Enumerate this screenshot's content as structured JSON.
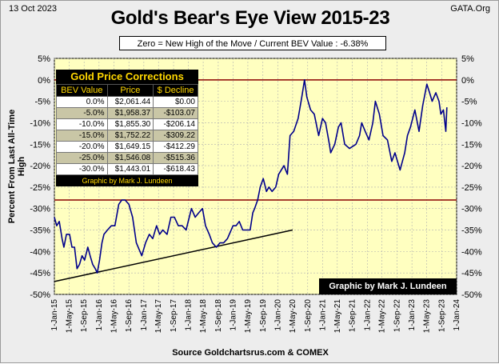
{
  "header": {
    "date": "13 Oct 2023",
    "site": "GATA.Org"
  },
  "subtitle": "Zero = New High of the Move / Current  BEV Value : -6.38%",
  "source": "Source Goldchartsrus.com & COMEX",
  "credit": "Graphic by Mark J. Lundeen",
  "table": {
    "title": "Gold Price Corrections",
    "headers": [
      "BEV Value",
      "Price",
      "$ Decline"
    ],
    "rows": [
      [
        "0.0%",
        "$2,061.44",
        "$0.00"
      ],
      [
        "-5.0%",
        "$1,958.37",
        "-$103.07"
      ],
      [
        "-10.0%",
        "$1,855.30",
        "-$206.14"
      ],
      [
        "-15.0%",
        "$1,752.22",
        "-$309.22"
      ],
      [
        "-20.0%",
        "$1,649.15",
        "-$412.29"
      ],
      [
        "-25.0%",
        "$1,546.08",
        "-$515.36"
      ],
      [
        "-30.0%",
        "$1,443.01",
        "-$618.43"
      ]
    ],
    "credit": "Graphic by Mark J. Lundeen"
  },
  "colors": {
    "plot_bg": "#ffffc0",
    "line": "#00008b",
    "ref_line": "#8b0000",
    "trend": "#000000"
  },
  "chart_data": {
    "type": "line",
    "title": "Gold's Bear's Eye View 2015-23",
    "ylabel": "Percent  From  Last  All-Time  High",
    "ylim": [
      -50,
      5
    ],
    "yticks": [
      "5%",
      "0%",
      "-5%",
      "-10%",
      "-15%",
      "-20%",
      "-25%",
      "-30%",
      "-35%",
      "-40%",
      "-45%",
      "-50%"
    ],
    "ytick_values": [
      5,
      0,
      -5,
      -10,
      -15,
      -20,
      -25,
      -30,
      -35,
      -40,
      -45,
      -50
    ],
    "xticks": [
      "1-Jan-15",
      "1-May-15",
      "1-Sep-15",
      "1-Jan-16",
      "1-May-16",
      "1-Sep-16",
      "1-Jan-17",
      "1-May-17",
      "1-Sep-17",
      "1-Jan-18",
      "1-May-18",
      "1-Sep-18",
      "1-Jan-19",
      "1-May-19",
      "1-Sep-19",
      "1-Jan-20",
      "1-May-20",
      "1-Sep-20",
      "1-Jan-21",
      "1-May-21",
      "1-Sep-21",
      "1-Jan-22",
      "1-May-22",
      "1-Sep-22",
      "1-Jan-23",
      "1-May-23",
      "1-Sep-23",
      "1-Jan-24"
    ],
    "xlim": [
      "2015-01-01",
      "2024-01-01"
    ],
    "reference_lines": [
      0,
      -28
    ],
    "trend_line": {
      "start": [
        "2015-01-01",
        -47
      ],
      "end": [
        "2020-05-01",
        -35
      ]
    },
    "series": [
      {
        "x": [
          "2015-01-01",
          "2015-01-20",
          "2015-02-10",
          "2015-03-05",
          "2015-03-20",
          "2015-04-10",
          "2015-05-05",
          "2015-05-25",
          "2015-06-15",
          "2015-07-05",
          "2015-07-25",
          "2015-08-15",
          "2015-09-05",
          "2015-10-01",
          "2015-10-20",
          "2015-11-10",
          "2015-12-01",
          "2015-12-17",
          "2016-01-05",
          "2016-01-25",
          "2016-02-10",
          "2016-03-10",
          "2016-04-10",
          "2016-05-10",
          "2016-06-10",
          "2016-07-05",
          "2016-08-01",
          "2016-09-01",
          "2016-10-01",
          "2016-11-01",
          "2016-12-15",
          "2017-01-15",
          "2017-02-15",
          "2017-03-15",
          "2017-04-15",
          "2017-05-10",
          "2017-06-05",
          "2017-07-10",
          "2017-08-10",
          "2017-09-08",
          "2017-10-10",
          "2017-11-10",
          "2017-12-12",
          "2018-01-25",
          "2018-02-25",
          "2018-03-25",
          "2018-04-25",
          "2018-05-20",
          "2018-06-20",
          "2018-07-15",
          "2018-08-16",
          "2018-09-15",
          "2018-10-15",
          "2018-11-15",
          "2018-12-31",
          "2019-01-25",
          "2019-02-20",
          "2019-03-20",
          "2019-04-20",
          "2019-05-20",
          "2019-06-10",
          "2019-06-25",
          "2019-07-20",
          "2019-08-10",
          "2019-09-04",
          "2019-09-30",
          "2019-10-20",
          "2019-11-15",
          "2019-12-15",
          "2020-01-08",
          "2020-02-20",
          "2020-03-19",
          "2020-04-10",
          "2020-05-10",
          "2020-06-15",
          "2020-07-15",
          "2020-08-06",
          "2020-08-25",
          "2020-09-25",
          "2020-10-25",
          "2020-11-30",
          "2020-12-31",
          "2021-01-25",
          "2021-02-25",
          "2021-03-08",
          "2021-04-10",
          "2021-05-10",
          "2021-06-01",
          "2021-06-30",
          "2021-08-09",
          "2021-09-30",
          "2021-10-30",
          "2021-11-16",
          "2021-12-15",
          "2022-01-15",
          "2022-02-15",
          "2022-03-08",
          "2022-04-10",
          "2022-05-10",
          "2022-06-15",
          "2022-07-20",
          "2022-08-15",
          "2022-09-26",
          "2022-10-15",
          "2022-11-03",
          "2022-11-25",
          "2022-12-20",
          "2023-01-25",
          "2023-02-28",
          "2023-03-30",
          "2023-05-03",
          "2023-05-25",
          "2023-06-15",
          "2023-07-15",
          "2023-08-10",
          "2023-08-25",
          "2023-09-15",
          "2023-10-05",
          "2023-10-13"
        ],
        "y": [
          -32,
          -34,
          -33,
          -37,
          -39,
          -36,
          -36,
          -39,
          -39,
          -44,
          -43,
          -41,
          -42,
          -39,
          -41,
          -43,
          -44,
          -45,
          -42,
          -38,
          -36,
          -35,
          -34,
          -34,
          -29,
          -28,
          -28,
          -29,
          -32,
          -38,
          -41,
          -38,
          -36,
          -37,
          -34,
          -36,
          -35,
          -36,
          -32,
          -32,
          -34,
          -34,
          -35,
          -30,
          -32,
          -31,
          -30,
          -34,
          -36,
          -38,
          -39,
          -38,
          -38,
          -37,
          -34,
          -34,
          -33,
          -35,
          -35,
          -35,
          -31,
          -30,
          -28,
          -25,
          -23,
          -26,
          -25,
          -26,
          -25,
          -22,
          -20,
          -22,
          -13,
          -12,
          -9,
          -4,
          0,
          -4,
          -7,
          -8,
          -13,
          -9,
          -10,
          -15,
          -17,
          -15,
          -11,
          -10,
          -15,
          -16,
          -15,
          -13,
          -10,
          -12,
          -14,
          -10,
          -5,
          -8,
          -13,
          -14,
          -19,
          -17,
          -21,
          -19,
          -17,
          -13,
          -11,
          -7,
          -12,
          -6,
          -1,
          -3,
          -5,
          -3,
          -5,
          -8,
          -7,
          -12,
          -6.4
        ]
      }
    ]
  }
}
